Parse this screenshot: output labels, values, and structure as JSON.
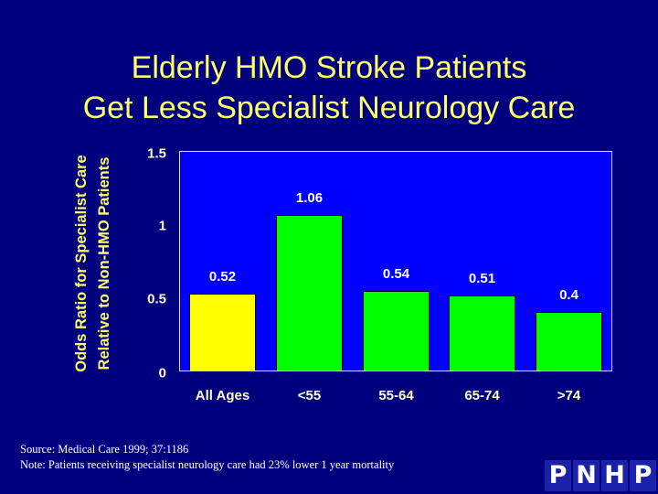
{
  "title": {
    "line1": "Elderly HMO Stroke Patients",
    "line2": "Get Less Specialist Neurology Care"
  },
  "colors": {
    "background": "#00007e",
    "plot_background": "#0000ff",
    "title_text": "#ffff66",
    "all_ages_bar": "#ffff00",
    "age_group_bar": "#00ff00"
  },
  "y_axis": {
    "label_line1": "Odds Ratio for Specialist Care",
    "label_line2": "Relative to Non-HMO Patients",
    "ticks": [
      "0",
      "0.5",
      "1",
      "1.5"
    ]
  },
  "bars": [
    {
      "category": "All Ages",
      "value": 0.52,
      "label": "0.52",
      "color": "#ffff00"
    },
    {
      "category": "<55",
      "value": 1.06,
      "label": "1.06",
      "color": "#00ff00"
    },
    {
      "category": "55-64",
      "value": 0.54,
      "label": "0.54",
      "color": "#00ff00"
    },
    {
      "category": "65-74",
      "value": 0.51,
      "label": "0.51",
      "color": "#00ff00"
    },
    {
      "category": ">74",
      "value": 0.4,
      "label": "0.4",
      "color": "#00ff00"
    }
  ],
  "footer": {
    "source": "Source: Medical Care 1999; 37:1186",
    "note": "Note: Patients receiving specialist neurology care had 23% lower 1 year mortality"
  },
  "logo": {
    "letters": [
      "P",
      "N",
      "H",
      "P"
    ]
  },
  "chart_data": {
    "type": "bar",
    "title": "Elderly HMO Stroke Patients Get Less Specialist Neurology Care",
    "categories": [
      "All Ages",
      "<55",
      "55-64",
      "65-74",
      ">74"
    ],
    "values": [
      0.52,
      1.06,
      0.54,
      0.51,
      0.4
    ],
    "data_labels": [
      "0.52",
      "1.06",
      "0.54",
      "0.51",
      "0.4"
    ],
    "xlabel": "",
    "ylabel": "Odds Ratio for Specialist Care Relative to Non-HMO Patients",
    "ylim": [
      0,
      1.5
    ],
    "yticks": [
      0,
      0.5,
      1,
      1.5
    ],
    "grid": false,
    "legend": null,
    "bar_colors": [
      "#ffff00",
      "#00ff00",
      "#00ff00",
      "#00ff00",
      "#00ff00"
    ],
    "annotations": [
      "Source: Medical Care 1999; 37:1186",
      "Note: Patients receiving specialist neurology care had 23% lower 1 year mortality"
    ]
  }
}
